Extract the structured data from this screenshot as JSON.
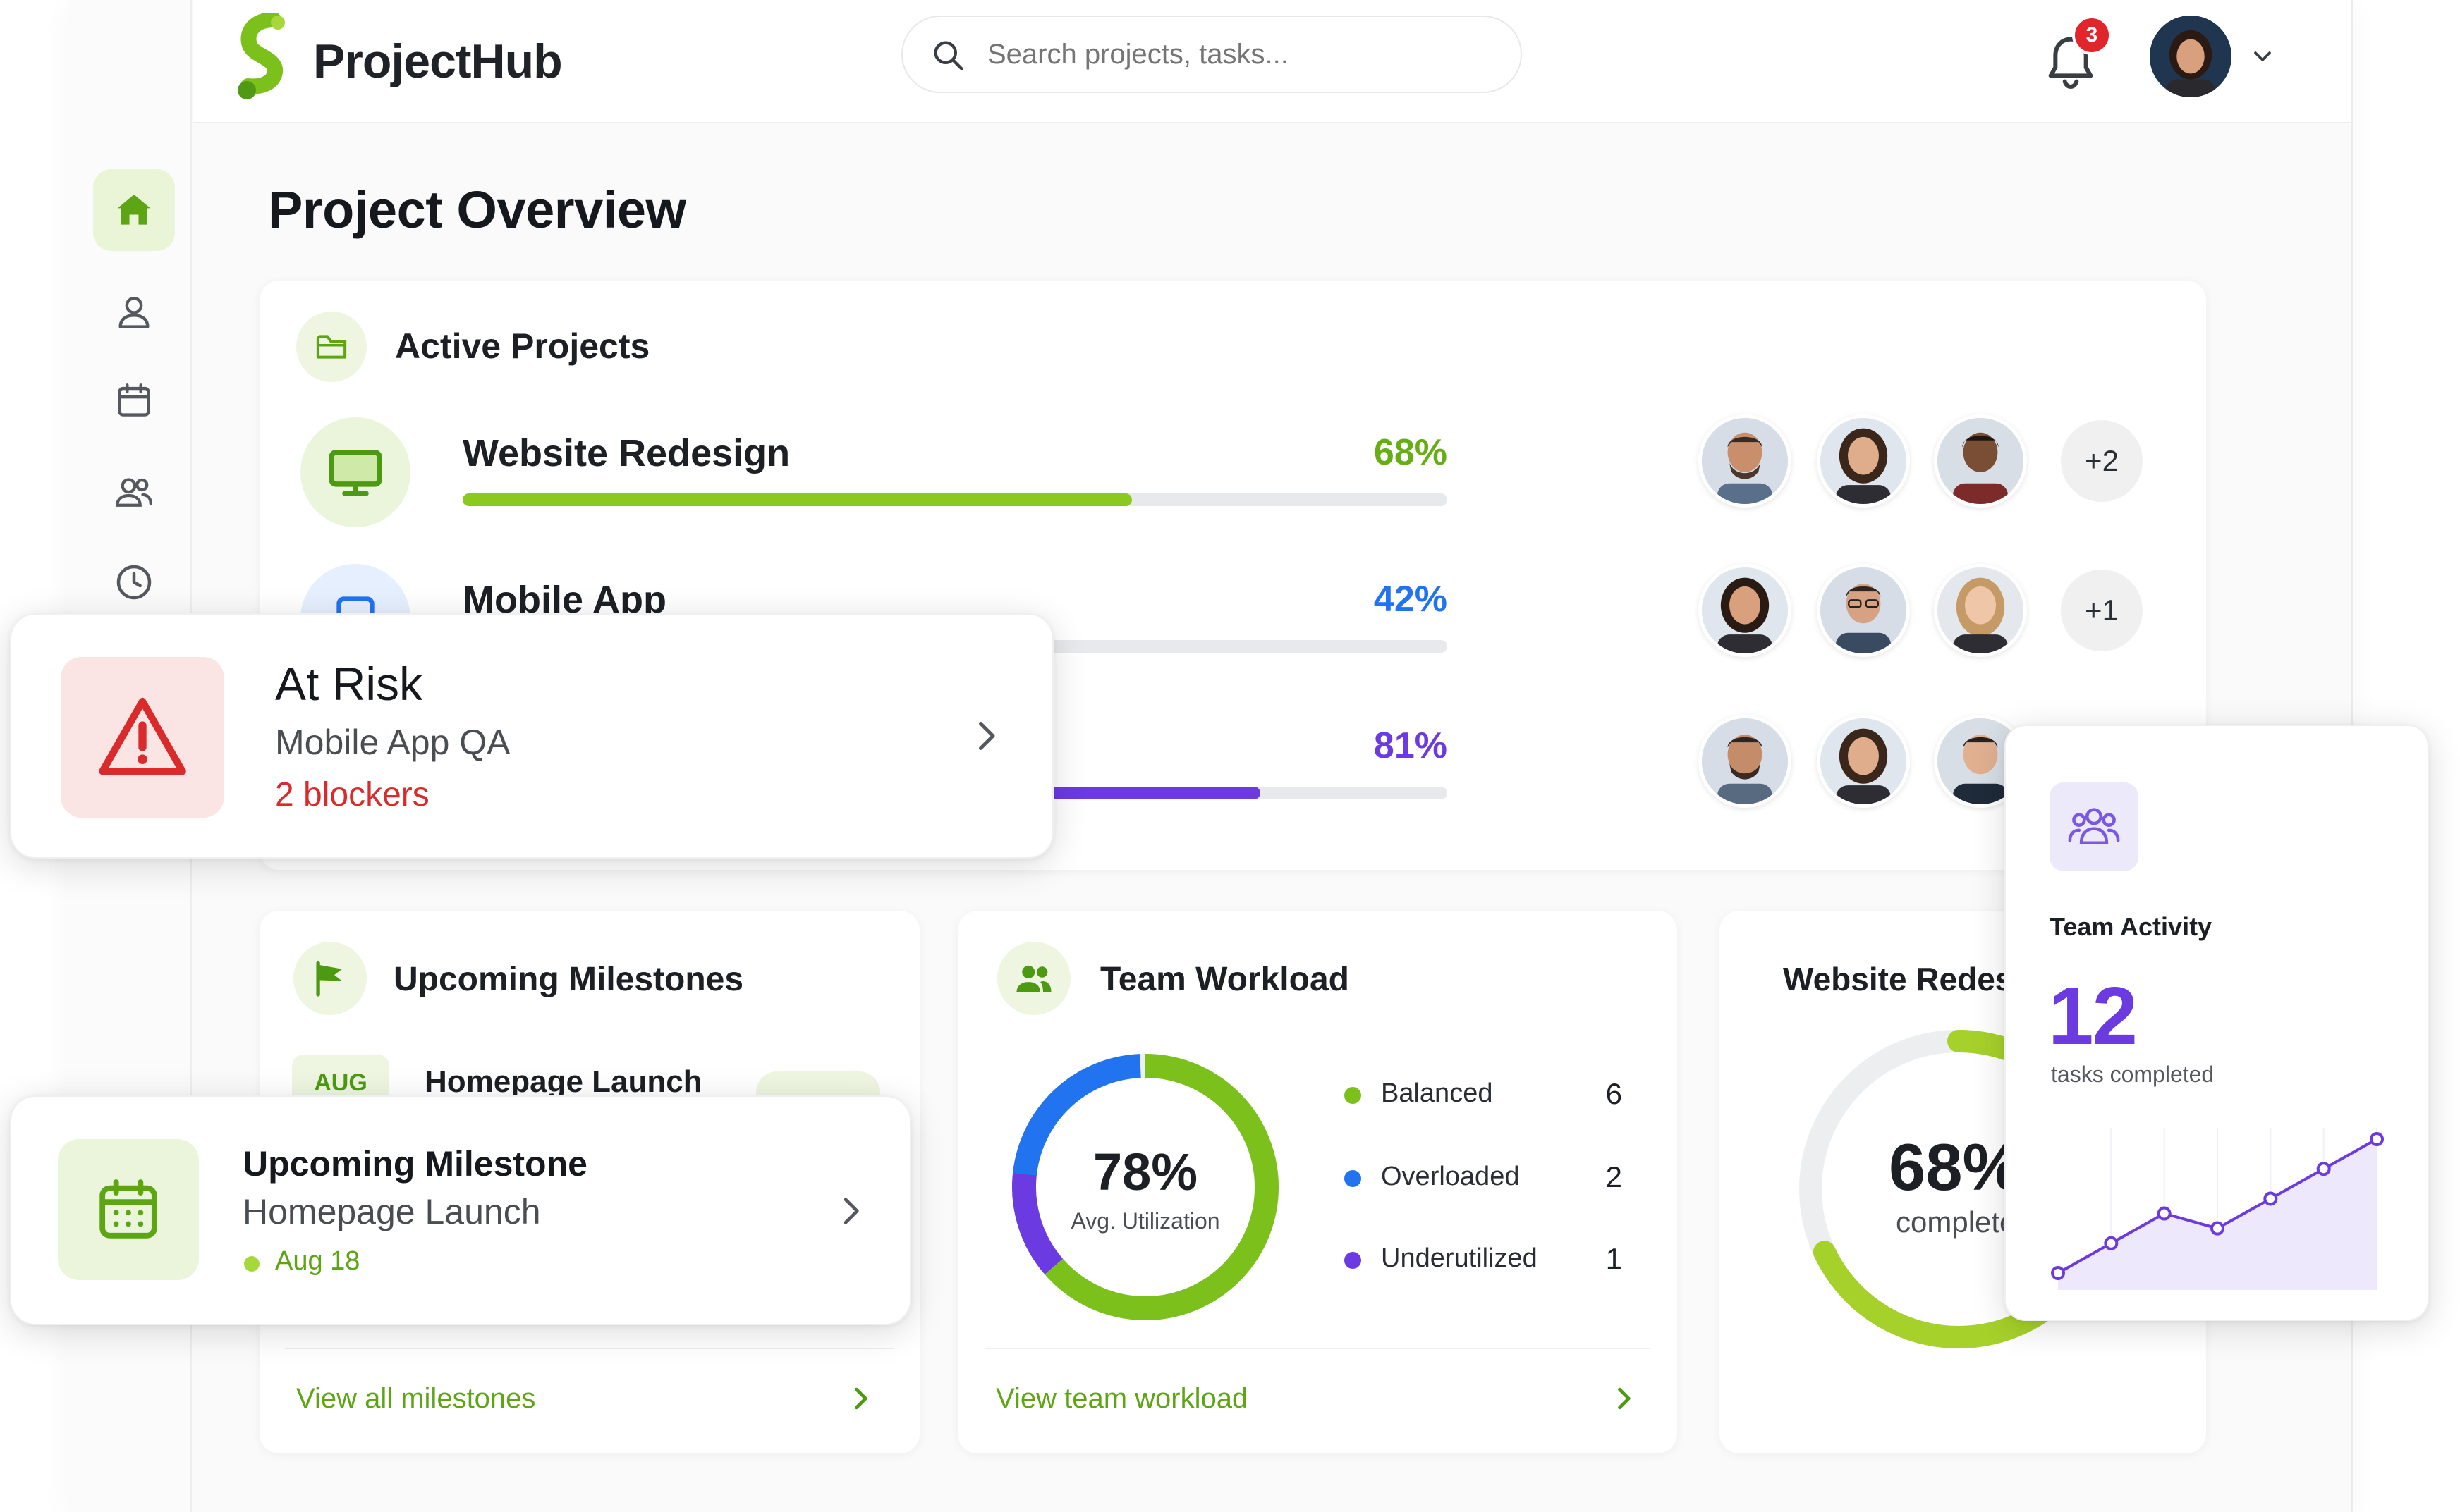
{
  "app": {
    "name": "ProjectHub"
  },
  "search": {
    "placeholder": "Search projects, tasks..."
  },
  "notifications": {
    "count": "3"
  },
  "page": {
    "title": "Project Overview"
  },
  "colors": {
    "brand_green": "#7cc01c",
    "blue": "#2173f0",
    "purple": "#6b3ae0",
    "risk_red": "#d92b2b"
  },
  "sidebar": {
    "items": [
      {
        "icon": "home-icon",
        "active": true
      },
      {
        "icon": "user-icon"
      },
      {
        "icon": "calendar-icon"
      },
      {
        "icon": "team-icon"
      },
      {
        "icon": "clock-icon"
      },
      {
        "icon": "settings-icon"
      }
    ]
  },
  "active_projects": {
    "title": "Active Projects",
    "projects": [
      {
        "name": "Website Redesign",
        "percent_label": "68%",
        "progress": 0.68,
        "color": "#8cc91e",
        "more": "+2"
      },
      {
        "name": "Mobile App",
        "percent_label": "42%",
        "progress": 0.42,
        "color": "#2173f0",
        "more": "+1"
      },
      {
        "name": "",
        "percent_label": "81%",
        "progress": 0.81,
        "color": "#6b3ae0",
        "more": ""
      }
    ]
  },
  "at_risk": {
    "title": "At Risk",
    "subtitle": "Mobile App QA",
    "detail": "2 blockers"
  },
  "milestones": {
    "title": "Upcoming Milestones",
    "month": "AUG",
    "item": "Homepage Launch",
    "footer_link": "View all milestones"
  },
  "upcoming_popup": {
    "title": "Upcoming Milestone",
    "subtitle": "Homepage Launch",
    "date": "Aug 18"
  },
  "workload": {
    "title": "Team Workload",
    "center_value": "78%",
    "center_label": "Avg. Utilization",
    "legend": [
      {
        "label": "Balanced",
        "count": "6",
        "color": "#7cc01c"
      },
      {
        "label": "Overloaded",
        "count": "2",
        "color": "#2173f0"
      },
      {
        "label": "Underutilized",
        "count": "1",
        "color": "#6b3ae0"
      }
    ],
    "footer_link": "View team workload"
  },
  "website_card": {
    "title": "Website Redesign",
    "center_value": "68%",
    "center_label": "complete",
    "progress": 0.68
  },
  "team_activity": {
    "title": "Team Activity",
    "value": "12",
    "label": "tasks completed",
    "series": [
      2,
      4,
      6,
      5,
      7,
      9,
      11
    ]
  }
}
